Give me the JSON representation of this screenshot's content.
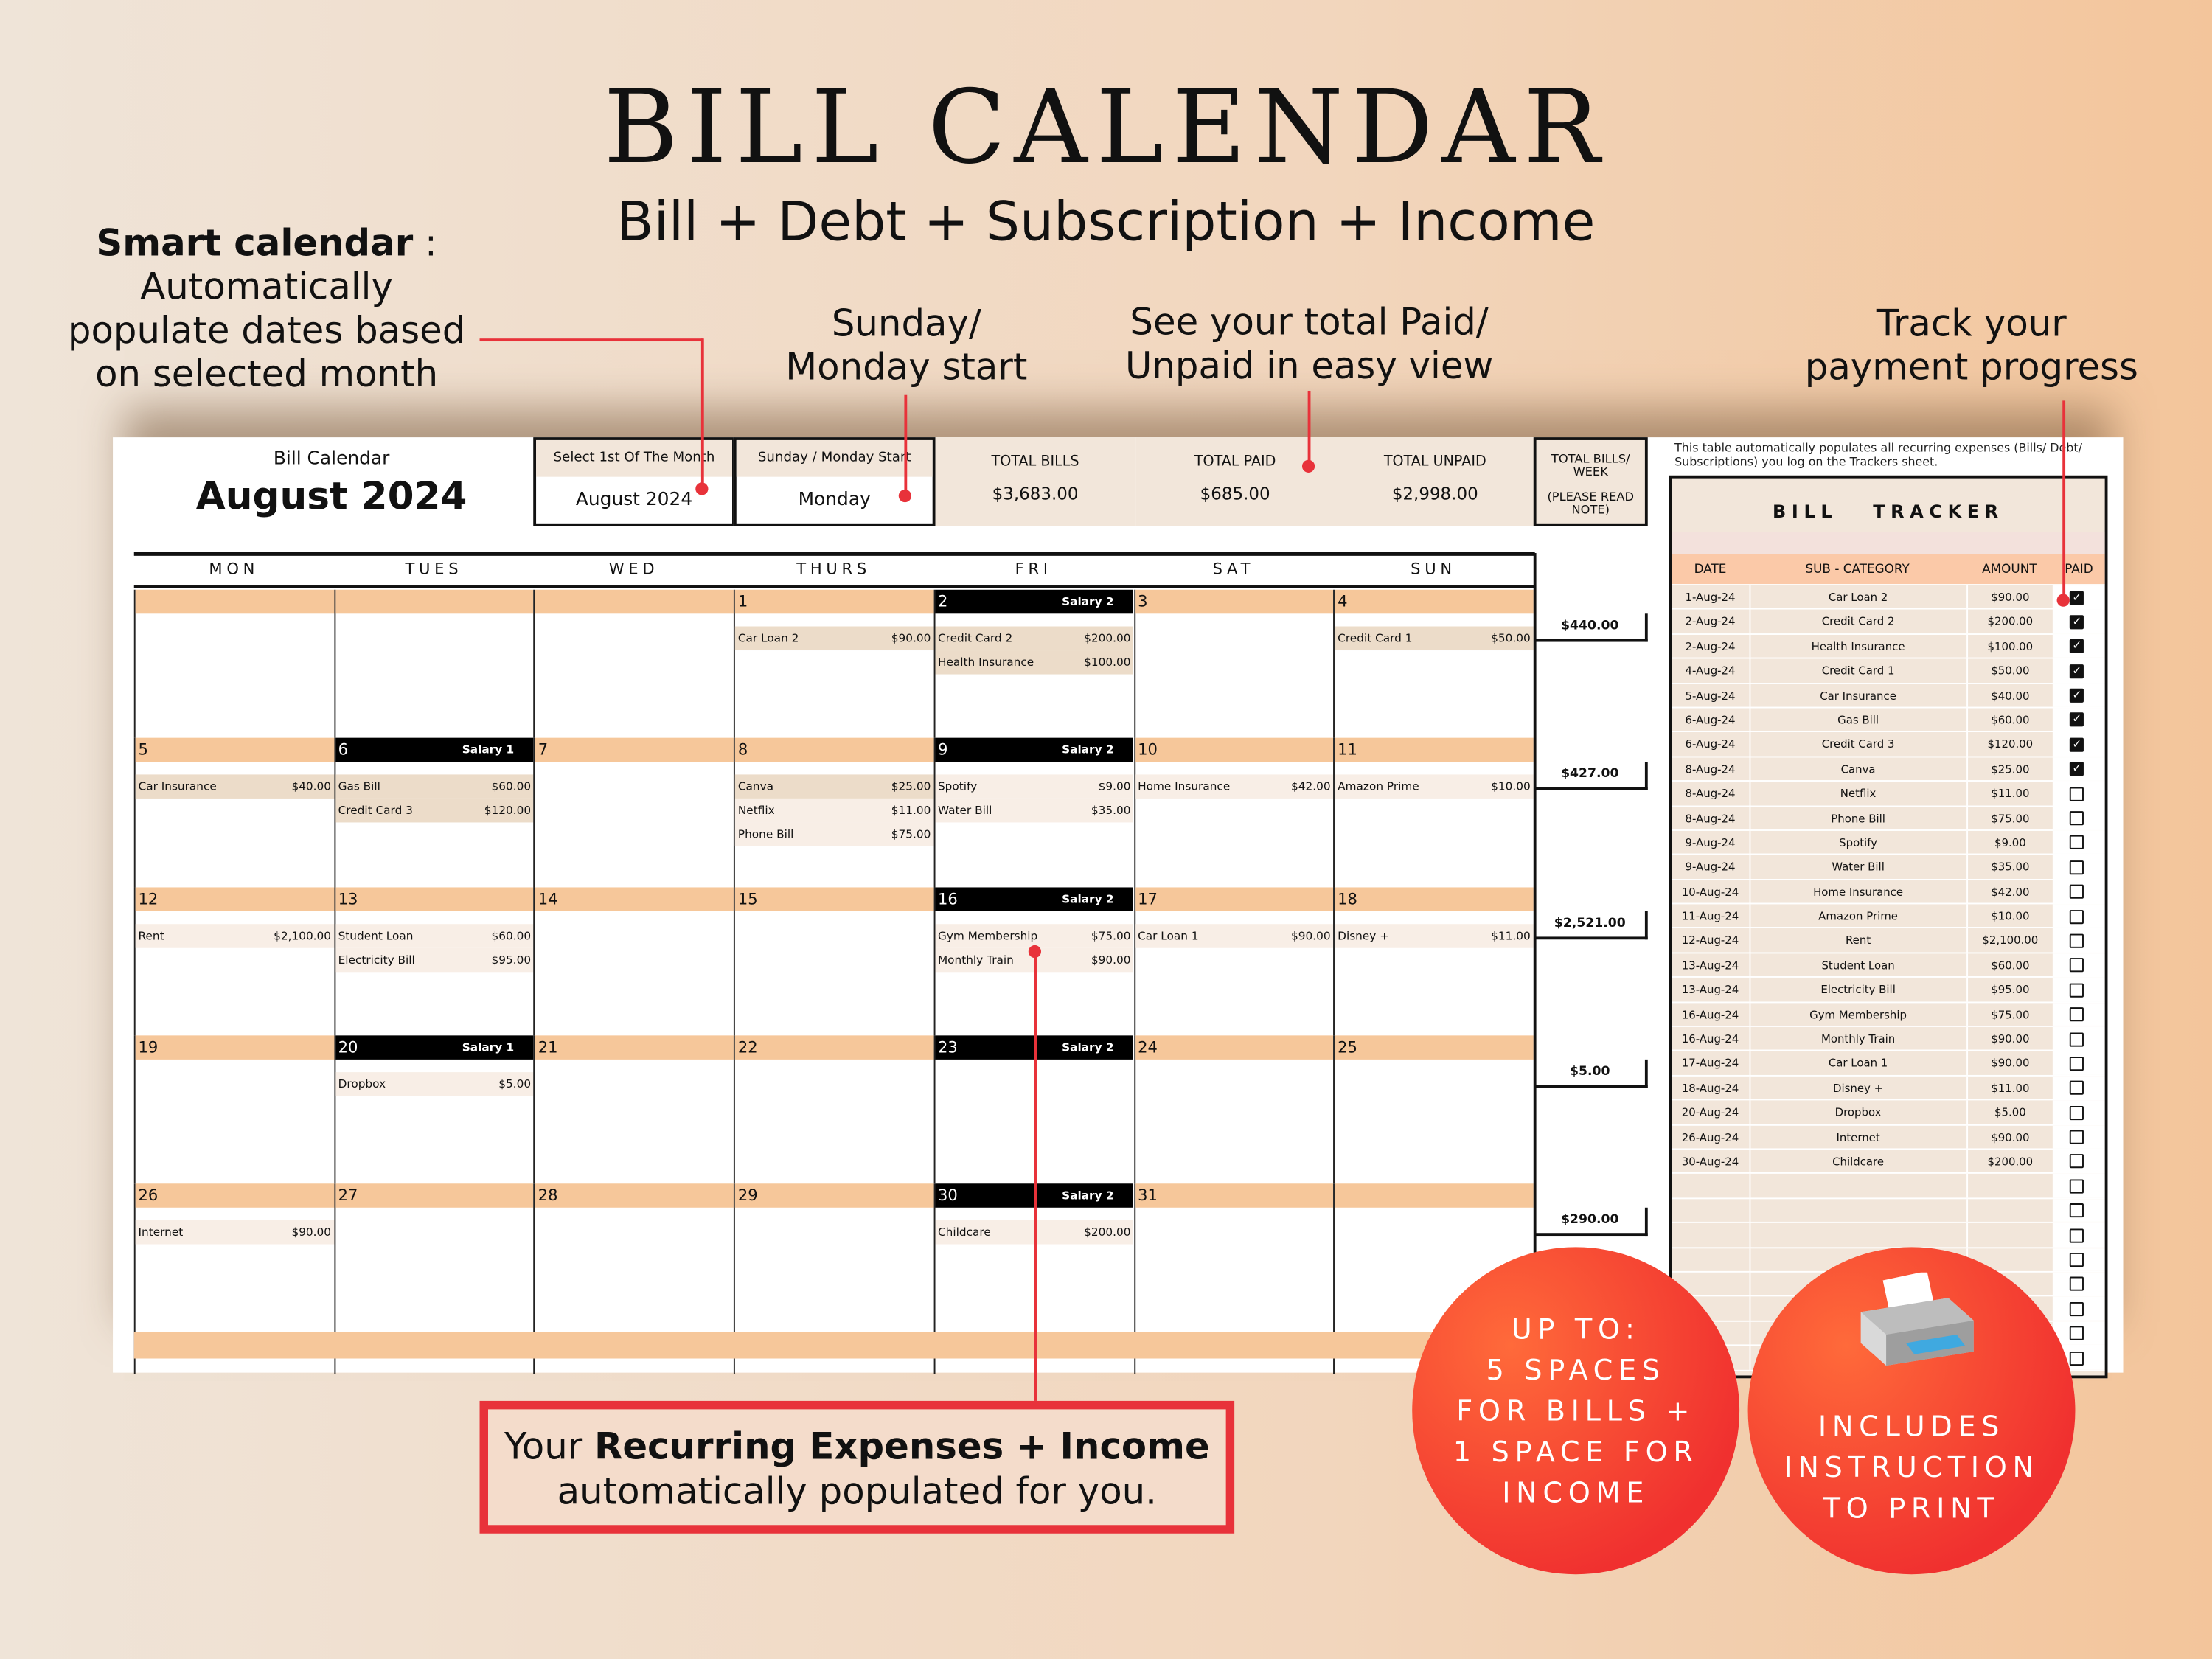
{
  "heading": {
    "title": "BILL CALENDAR",
    "subtitle": "Bill + Debt + Subscription + Income"
  },
  "annotations": {
    "smart_bold": "Smart calendar",
    "smart_colon": " :",
    "smart_rest": [
      "Automatically",
      "populate dates based",
      "on selected month"
    ],
    "start": [
      "Sunday/",
      "Monday start"
    ],
    "totals": [
      "See your total Paid/",
      "Unpaid in easy view"
    ],
    "progress": [
      "Track your",
      "payment progress"
    ],
    "recurring_pre": "Your ",
    "recurring_bold": "Recurring Expenses + Income",
    "recurring_post": "automatically populated for you.",
    "circle1": [
      "UP TO:",
      "5 SPACES",
      "FOR BILLS +",
      "1 SPACE FOR",
      "INCOME"
    ],
    "circle2": [
      "INCLUDES",
      "INSTRUCTION",
      "TO PRINT"
    ],
    "printer_icon": "printer-icon",
    "accent": "#e8323a"
  },
  "calendar": {
    "label": "Bill Calendar",
    "month": "August 2024",
    "select_month_label": "Select 1st Of The Month",
    "select_month_value": "August  2024",
    "start_label": "Sunday / Monday Start",
    "start_value": "Monday",
    "totals": [
      {
        "label": "TOTAL BILLS",
        "value": "$3,683.00"
      },
      {
        "label": "TOTAL PAID",
        "value": "$685.00"
      },
      {
        "label": "TOTAL UNPAID",
        "value": "$2,998.00"
      }
    ],
    "week_total_label": "TOTAL BILLS/ WEEK",
    "week_total_note": "(PLEASE READ NOTE)",
    "day_names": [
      "MON",
      "TUES",
      "WED",
      "THURS",
      "FRI",
      "SAT",
      "SUN"
    ],
    "weeks": [
      {
        "total": "$440.00",
        "days": [
          {
            "num": ""
          },
          {
            "num": ""
          },
          {
            "num": ""
          },
          {
            "num": "1",
            "items": [
              {
                "name": "Car Loan 2",
                "amount": "$90.00",
                "paid": true
              }
            ]
          },
          {
            "num": "2",
            "salary": "Salary 2",
            "items": [
              {
                "name": "Credit Card 2",
                "amount": "$200.00",
                "paid": true
              },
              {
                "name": "Health Insurance",
                "amount": "$100.00",
                "paid": true
              }
            ]
          },
          {
            "num": "3"
          },
          {
            "num": "4",
            "items": [
              {
                "name": "Credit Card 1",
                "amount": "$50.00",
                "paid": true
              }
            ]
          }
        ]
      },
      {
        "total": "$427.00",
        "days": [
          {
            "num": "5",
            "items": [
              {
                "name": "Car Insurance",
                "amount": "$40.00",
                "paid": true
              }
            ]
          },
          {
            "num": "6",
            "salary": "Salary 1",
            "items": [
              {
                "name": "Gas Bill",
                "amount": "$60.00",
                "paid": true
              },
              {
                "name": "Credit Card 3",
                "amount": "$120.00",
                "paid": true
              }
            ]
          },
          {
            "num": "7"
          },
          {
            "num": "8",
            "items": [
              {
                "name": "Canva",
                "amount": "$25.00",
                "paid": true
              },
              {
                "name": "Netflix",
                "amount": "$11.00"
              },
              {
                "name": "Phone Bill",
                "amount": "$75.00"
              }
            ]
          },
          {
            "num": "9",
            "salary": "Salary 2",
            "items": [
              {
                "name": "Spotify",
                "amount": "$9.00"
              },
              {
                "name": "Water Bill",
                "amount": "$35.00"
              }
            ]
          },
          {
            "num": "10",
            "items": [
              {
                "name": "Home Insurance",
                "amount": "$42.00"
              }
            ]
          },
          {
            "num": "11",
            "items": [
              {
                "name": "Amazon Prime",
                "amount": "$10.00"
              }
            ]
          }
        ]
      },
      {
        "total": "$2,521.00",
        "days": [
          {
            "num": "12",
            "items": [
              {
                "name": "Rent",
                "amount": "$2,100.00"
              }
            ]
          },
          {
            "num": "13",
            "items": [
              {
                "name": "Student Loan",
                "amount": "$60.00"
              },
              {
                "name": "Electricity Bill",
                "amount": "$95.00"
              }
            ]
          },
          {
            "num": "14"
          },
          {
            "num": "15"
          },
          {
            "num": "16",
            "salary": "Salary 2",
            "items": [
              {
                "name": "Gym Membership",
                "amount": "$75.00"
              },
              {
                "name": "Monthly Train",
                "amount": "$90.00"
              }
            ]
          },
          {
            "num": "17",
            "items": [
              {
                "name": "Car Loan 1",
                "amount": "$90.00"
              }
            ]
          },
          {
            "num": "18",
            "items": [
              {
                "name": "Disney +",
                "amount": "$11.00"
              }
            ]
          }
        ]
      },
      {
        "total": "$5.00",
        "days": [
          {
            "num": "19"
          },
          {
            "num": "20",
            "salary": "Salary 1",
            "items": [
              {
                "name": "Dropbox",
                "amount": "$5.00"
              }
            ]
          },
          {
            "num": "21"
          },
          {
            "num": "22"
          },
          {
            "num": "23",
            "salary": "Salary 2"
          },
          {
            "num": "24"
          },
          {
            "num": "25"
          }
        ]
      },
      {
        "total": "$290.00",
        "days": [
          {
            "num": "26",
            "items": [
              {
                "name": "Internet",
                "amount": "$90.00"
              }
            ]
          },
          {
            "num": "27"
          },
          {
            "num": "28"
          },
          {
            "num": "29"
          },
          {
            "num": "30",
            "salary": "Salary 2",
            "items": [
              {
                "name": "Childcare",
                "amount": "$200.00"
              }
            ]
          },
          {
            "num": "31"
          },
          {
            "num": ""
          }
        ]
      }
    ]
  },
  "tracker": {
    "note": "This table automatically populates all recurring expenses (Bills/ Debt/ Subscriptions) you log on the Trackers sheet.",
    "title": "BILL   TRACKER",
    "headers": [
      "DATE",
      "SUB - CATEGORY",
      "AMOUNT",
      "PAID"
    ],
    "rows": [
      {
        "date": "1-Aug-24",
        "cat": "Car Loan 2",
        "amount": "$90.00",
        "paid": true
      },
      {
        "date": "2-Aug-24",
        "cat": "Credit Card 2",
        "amount": "$200.00",
        "paid": true
      },
      {
        "date": "2-Aug-24",
        "cat": "Health Insurance",
        "amount": "$100.00",
        "paid": true
      },
      {
        "date": "4-Aug-24",
        "cat": "Credit Card 1",
        "amount": "$50.00",
        "paid": true
      },
      {
        "date": "5-Aug-24",
        "cat": "Car Insurance",
        "amount": "$40.00",
        "paid": true
      },
      {
        "date": "6-Aug-24",
        "cat": "Gas Bill",
        "amount": "$60.00",
        "paid": true
      },
      {
        "date": "6-Aug-24",
        "cat": "Credit Card 3",
        "amount": "$120.00",
        "paid": true
      },
      {
        "date": "8-Aug-24",
        "cat": "Canva",
        "amount": "$25.00",
        "paid": true
      },
      {
        "date": "8-Aug-24",
        "cat": "Netflix",
        "amount": "$11.00",
        "paid": false
      },
      {
        "date": "8-Aug-24",
        "cat": "Phone Bill",
        "amount": "$75.00",
        "paid": false
      },
      {
        "date": "9-Aug-24",
        "cat": "Spotify",
        "amount": "$9.00",
        "paid": false
      },
      {
        "date": "9-Aug-24",
        "cat": "Water Bill",
        "amount": "$35.00",
        "paid": false
      },
      {
        "date": "10-Aug-24",
        "cat": "Home Insurance",
        "amount": "$42.00",
        "paid": false
      },
      {
        "date": "11-Aug-24",
        "cat": "Amazon Prime",
        "amount": "$10.00",
        "paid": false
      },
      {
        "date": "12-Aug-24",
        "cat": "Rent",
        "amount": "$2,100.00",
        "paid": false
      },
      {
        "date": "13-Aug-24",
        "cat": "Student Loan",
        "amount": "$60.00",
        "paid": false
      },
      {
        "date": "13-Aug-24",
        "cat": "Electricity Bill",
        "amount": "$95.00",
        "paid": false
      },
      {
        "date": "16-Aug-24",
        "cat": "Gym Membership",
        "amount": "$75.00",
        "paid": false
      },
      {
        "date": "16-Aug-24",
        "cat": "Monthly Train",
        "amount": "$90.00",
        "paid": false
      },
      {
        "date": "17-Aug-24",
        "cat": "Car Loan 1",
        "amount": "$90.00",
        "paid": false
      },
      {
        "date": "18-Aug-24",
        "cat": "Disney +",
        "amount": "$11.00",
        "paid": false
      },
      {
        "date": "20-Aug-24",
        "cat": "Dropbox",
        "amount": "$5.00",
        "paid": false
      },
      {
        "date": "26-Aug-24",
        "cat": "Internet",
        "amount": "$90.00",
        "paid": false
      },
      {
        "date": "30-Aug-24",
        "cat": "Childcare",
        "amount": "$200.00",
        "paid": false
      }
    ]
  }
}
